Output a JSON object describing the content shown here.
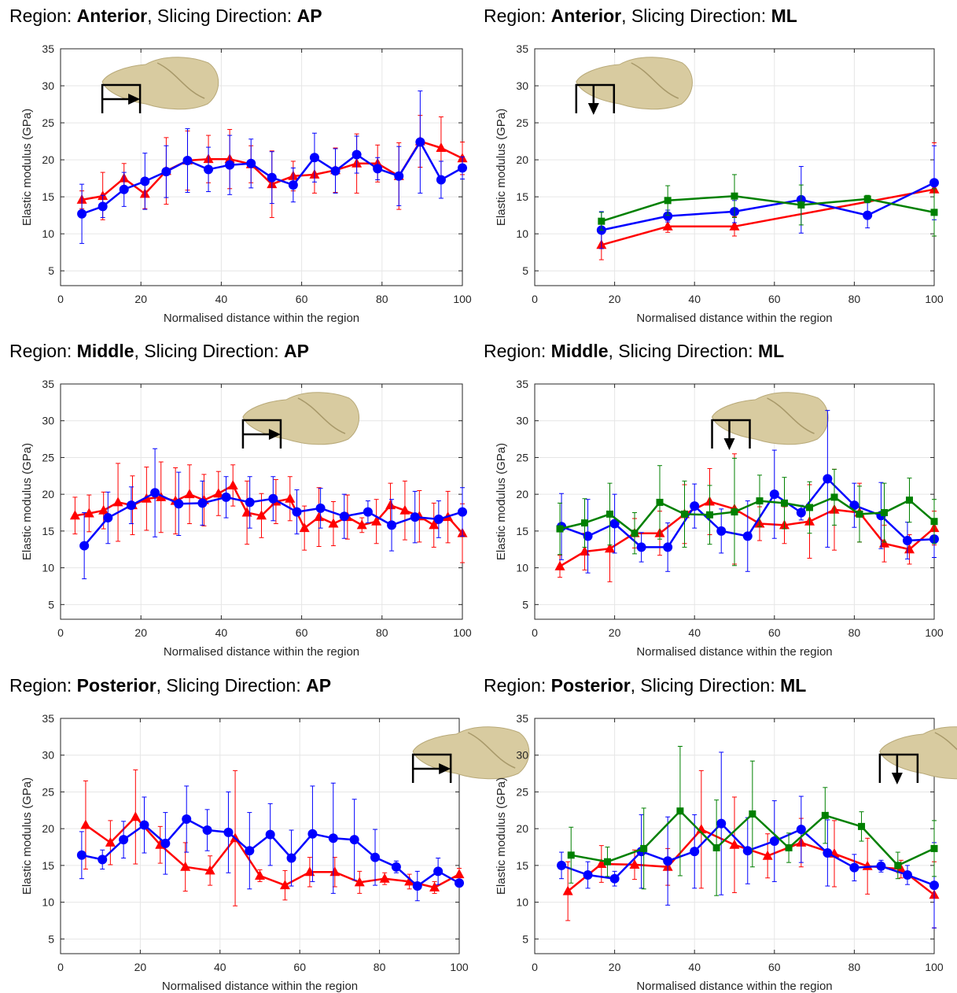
{
  "chart_data": [
    {
      "type": "line",
      "title_parts": [
        "Region: ",
        "Anterior",
        ", Slicing Direction: ",
        "AP"
      ],
      "xlabel": "Normalised distance within the region",
      "ylabel": "Elastic modulus (GPa)",
      "xlim": [
        0,
        100
      ],
      "ylim": [
        3,
        35
      ],
      "xticks": [
        0,
        20,
        40,
        60,
        80,
        100
      ],
      "yticks": [
        5,
        10,
        15,
        20,
        25,
        30,
        35
      ],
      "grid": true,
      "schematic": {
        "x": 10,
        "direction": "right"
      },
      "series": [
        {
          "color": "#ff0000",
          "marker": "triangle",
          "x": [
            5.3,
            10.5,
            15.8,
            21,
            26.3,
            31.6,
            36.8,
            42.1,
            47.4,
            52.6,
            57.9,
            63.2,
            68.4,
            73.7,
            78.9,
            84.2,
            89.5,
            94.7,
            100
          ],
          "y": [
            14.6,
            15.1,
            17.5,
            15.4,
            18.5,
            19.9,
            20.1,
            20.1,
            19.4,
            16.7,
            17.8,
            18.0,
            18.6,
            19.5,
            19.5,
            17.8,
            22.5,
            21.6,
            20.2
          ],
          "err": [
            1.2,
            3.2,
            2,
            2,
            4.5,
            4,
            3.2,
            4,
            2.5,
            4.5,
            2,
            2.5,
            3,
            4,
            2.5,
            4.5,
            3.5,
            4.2,
            2.2
          ]
        },
        {
          "color": "#0000ff",
          "marker": "circle",
          "x": [
            5.3,
            10.5,
            15.8,
            21,
            26.3,
            31.6,
            36.8,
            42.1,
            47.4,
            52.6,
            57.9,
            63.2,
            68.4,
            73.7,
            78.9,
            84.2,
            89.5,
            94.7,
            100
          ],
          "y": [
            12.7,
            13.7,
            16.0,
            17.1,
            18.4,
            19.9,
            18.7,
            19.3,
            19.5,
            17.6,
            16.6,
            20.3,
            18.5,
            20.7,
            18.8,
            17.8,
            22.4,
            17.3,
            18.9
          ],
          "err": [
            4,
            1.5,
            2.3,
            3.8,
            3.5,
            4.3,
            3,
            4,
            3.3,
            3.5,
            2.3,
            3.3,
            3,
            2.5,
            1.5,
            4,
            6.9,
            2.5,
            1.5
          ]
        }
      ]
    },
    {
      "type": "line",
      "title_parts": [
        "Region: ",
        "Anterior",
        ", Slicing Direction: ",
        "ML"
      ],
      "xlabel": "Normalised distance within the region",
      "ylabel": "Elastic modulus (GPa)",
      "xlim": [
        0,
        100
      ],
      "ylim": [
        3,
        35
      ],
      "xticks": [
        0,
        20,
        40,
        60,
        80,
        100
      ],
      "yticks": [
        5,
        10,
        15,
        20,
        25,
        30,
        35
      ],
      "grid": true,
      "schematic": {
        "x": 10,
        "direction": "down"
      },
      "series": [
        {
          "color": "#ff0000",
          "marker": "triangle",
          "x": [
            16.7,
            33.3,
            50,
            100
          ],
          "y": [
            8.5,
            11.0,
            11.0,
            16.0
          ],
          "err": [
            2,
            0.8,
            1.3,
            6.3
          ]
        },
        {
          "color": "#0000ff",
          "marker": "circle",
          "x": [
            16.7,
            33.3,
            50,
            66.7,
            83.3,
            100
          ],
          "y": [
            10.5,
            12.4,
            13.0,
            14.6,
            12.5,
            16.9
          ],
          "err": [
            2.5,
            0.8,
            1.5,
            4.5,
            1.7,
            5
          ]
        },
        {
          "color": "#008000",
          "marker": "square",
          "x": [
            16.7,
            33.3,
            50,
            66.7,
            83.3,
            100
          ],
          "y": [
            11.7,
            14.5,
            15.1,
            13.9,
            14.7,
            12.9
          ],
          "err": [
            1.2,
            2,
            2.9,
            2.7,
            0.5,
            3.2
          ]
        }
      ]
    },
    {
      "type": "line",
      "title_parts": [
        "Region: ",
        "Middle",
        ", Slicing Direction: ",
        "AP"
      ],
      "xlabel": "Normalised distance within the region",
      "ylabel": "Elastic modulus (GPa)",
      "xlim": [
        0,
        100
      ],
      "ylim": [
        3,
        35
      ],
      "xticks": [
        0,
        20,
        40,
        60,
        80,
        100
      ],
      "yticks": [
        5,
        10,
        15,
        20,
        25,
        30,
        35
      ],
      "grid": true,
      "schematic": {
        "x": 45,
        "direction": "right"
      },
      "series": [
        {
          "color": "#ff0000",
          "marker": "triangle",
          "x": [
            3.6,
            7.1,
            10.7,
            14.3,
            17.9,
            21.4,
            25,
            28.6,
            32.1,
            35.7,
            39.3,
            42.9,
            46.4,
            50,
            53.6,
            57.1,
            60.7,
            64.3,
            67.9,
            71.4,
            75,
            78.6,
            82.1,
            85.7,
            89.3,
            92.9,
            96.4,
            100
          ],
          "y": [
            17.1,
            17.4,
            17.8,
            18.9,
            18.5,
            19.4,
            19.6,
            19.1,
            20.0,
            19.2,
            20.1,
            21.2,
            17.5,
            17.1,
            19.0,
            19.4,
            15.4,
            16.9,
            16.0,
            16.9,
            15.8,
            16.3,
            18.5,
            17.8,
            17.0,
            15.8,
            16.9,
            14.7
          ],
          "err": [
            2.5,
            2.5,
            2.5,
            5.3,
            4,
            4.3,
            4.8,
            4.5,
            4,
            3.5,
            3,
            2.8,
            4.3,
            3,
            3,
            3,
            3,
            4,
            3,
            3,
            1,
            3,
            3,
            4,
            3.5,
            3,
            3.5,
            4
          ]
        },
        {
          "color": "#0000ff",
          "marker": "circle",
          "x": [
            5.9,
            11.8,
            17.6,
            23.5,
            29.4,
            35.3,
            41.2,
            47.1,
            52.9,
            58.8,
            64.7,
            70.6,
            76.5,
            82.4,
            88.2,
            94.1,
            100
          ],
          "y": [
            13.0,
            16.8,
            18.5,
            20.2,
            18.7,
            18.8,
            19.6,
            18.9,
            19.4,
            17.6,
            18.1,
            17.0,
            17.6,
            15.8,
            16.9,
            16.6,
            17.6
          ],
          "err": [
            4.5,
            3.5,
            2.5,
            6,
            4.3,
            3,
            2.8,
            3.5,
            3,
            3,
            2.7,
            3,
            1.5,
            3.5,
            3.5,
            2.5,
            3.3
          ]
        }
      ]
    },
    {
      "type": "line",
      "title_parts": [
        "Region: ",
        "Middle",
        ", Slicing Direction: ",
        "ML"
      ],
      "xlabel": "Normalised distance within the region",
      "ylabel": "Elastic modulus (GPa)",
      "xlim": [
        0,
        100
      ],
      "ylim": [
        3,
        35
      ],
      "xticks": [
        0,
        20,
        40,
        60,
        80,
        100
      ],
      "yticks": [
        5,
        10,
        15,
        20,
        25,
        30,
        35
      ],
      "grid": true,
      "schematic": {
        "x": 44,
        "direction": "down"
      },
      "series": [
        {
          "color": "#ff0000",
          "marker": "triangle",
          "x": [
            6.3,
            12.5,
            18.8,
            25,
            31.3,
            37.5,
            43.8,
            50,
            56.3,
            62.5,
            68.8,
            75,
            81.3,
            87.5,
            93.8,
            100
          ],
          "y": [
            10.2,
            12.2,
            12.6,
            14.7,
            14.7,
            17.3,
            19.0,
            18.0,
            16.0,
            15.8,
            16.3,
            17.9,
            17.5,
            13.3,
            12.5,
            15.4
          ],
          "err": [
            1.5,
            2.5,
            4.5,
            2,
            3,
            4,
            4.5,
            7.5,
            2.3,
            2.5,
            5,
            5.5,
            4,
            2.5,
            2,
            2.3
          ]
        },
        {
          "color": "#0000ff",
          "marker": "circle",
          "x": [
            6.7,
            13.3,
            20,
            26.7,
            33.3,
            40,
            46.7,
            53.3,
            60,
            66.7,
            73.3,
            80,
            86.7,
            93.3,
            100
          ],
          "y": [
            15.6,
            14.3,
            16.0,
            12.8,
            12.8,
            18.4,
            15.0,
            14.3,
            20.0,
            17.5,
            22.1,
            18.5,
            17.1,
            13.7,
            13.9
          ],
          "err": [
            4.5,
            5,
            4,
            2,
            3.3,
            3,
            3,
            4.8,
            6,
            1,
            9.3,
            3,
            4.5,
            2.5,
            2.5
          ]
        },
        {
          "color": "#008000",
          "marker": "square",
          "x": [
            6.3,
            12.5,
            18.8,
            25,
            31.3,
            37.5,
            43.8,
            50,
            56.3,
            62.5,
            68.8,
            75,
            81.3,
            87.5,
            93.8,
            100
          ],
          "y": [
            15.3,
            16.1,
            17.3,
            14.7,
            18.9,
            17.3,
            17.2,
            17.6,
            19.1,
            18.8,
            18.2,
            19.6,
            17.3,
            17.5,
            19.2,
            16.3
          ],
          "err": [
            3.5,
            3.3,
            4.2,
            2.8,
            5,
            4.5,
            4,
            7.3,
            3.5,
            3.5,
            3.5,
            3.8,
            3.8,
            4,
            3,
            3
          ]
        }
      ]
    },
    {
      "type": "line",
      "title_parts": [
        "Region: ",
        "Posterior",
        ", Slicing Direction: ",
        "AP"
      ],
      "xlabel": "Normalised distance within the region",
      "ylabel": "Elastic modulus (GPa)",
      "xlim": [
        0,
        100
      ],
      "ylim": [
        3,
        35
      ],
      "xticks": [
        0,
        20,
        40,
        60,
        80,
        100
      ],
      "yticks": [
        5,
        10,
        15,
        20,
        25,
        30,
        35
      ],
      "grid": true,
      "schematic": {
        "x": 88,
        "direction": "right"
      },
      "series": [
        {
          "color": "#ff0000",
          "marker": "triangle",
          "x": [
            6.3,
            12.5,
            18.8,
            25,
            31.3,
            37.5,
            43.8,
            50,
            56.3,
            62.5,
            68.8,
            75,
            81.3,
            87.5,
            93.8,
            100
          ],
          "y": [
            20.5,
            18.1,
            21.6,
            17.8,
            14.8,
            14.3,
            18.7,
            13.6,
            12.3,
            14.1,
            14.1,
            12.7,
            13.2,
            12.8,
            12.0,
            13.8
          ],
          "err": [
            6,
            3,
            6.4,
            2.5,
            3.3,
            2,
            9.2,
            0.8,
            2,
            2,
            2,
            1.5,
            0.8,
            1,
            0.8,
            0.8
          ]
        },
        {
          "color": "#0000ff",
          "marker": "circle",
          "x": [
            5.3,
            10.5,
            15.8,
            21,
            26.3,
            31.6,
            36.8,
            42.1,
            47.4,
            52.6,
            57.9,
            63.2,
            68.4,
            73.7,
            78.9,
            84.2,
            89.5,
            94.7,
            100
          ],
          "y": [
            16.4,
            15.8,
            18.5,
            20.5,
            18.0,
            21.3,
            19.8,
            19.5,
            17.0,
            19.2,
            16.0,
            19.3,
            18.7,
            18.5,
            16.1,
            14.8,
            12.2,
            14.2,
            12.6
          ],
          "err": [
            3.2,
            1.3,
            2.5,
            3.8,
            4.2,
            4.5,
            2.8,
            5.5,
            5.2,
            4.2,
            3.8,
            6.5,
            7.5,
            5.5,
            3.8,
            0.8,
            2,
            1.8,
            0.5
          ]
        }
      ]
    },
    {
      "type": "line",
      "title_parts": [
        "Region: ",
        "Posterior",
        ", Slicing Direction: ",
        "ML"
      ],
      "xlabel": "Normalised distance within the region",
      "ylabel": "Elastic modulus (GPa)",
      "xlim": [
        0,
        100
      ],
      "ylim": [
        3,
        35
      ],
      "xticks": [
        0,
        20,
        40,
        60,
        80,
        100
      ],
      "yticks": [
        5,
        10,
        15,
        20,
        25,
        30,
        35
      ],
      "grid": true,
      "schematic": {
        "x": 86,
        "direction": "down"
      },
      "series": [
        {
          "color": "#ff0000",
          "marker": "triangle",
          "x": [
            8.3,
            16.7,
            25,
            33.3,
            41.7,
            50,
            58.3,
            66.7,
            75,
            83.3,
            91.7,
            100
          ],
          "y": [
            11.5,
            15.2,
            15.1,
            14.8,
            19.9,
            17.8,
            16.3,
            18.1,
            16.6,
            14.9,
            14.5,
            11.0
          ],
          "err": [
            4,
            2.5,
            2,
            2.5,
            8,
            6.5,
            3,
            3.3,
            4.5,
            3.8,
            1.2,
            4.5
          ]
        },
        {
          "color": "#0000ff",
          "marker": "circle",
          "x": [
            6.7,
            13.3,
            20,
            26.7,
            33.3,
            40,
            46.7,
            53.3,
            60,
            66.7,
            73.3,
            80,
            86.7,
            93.3,
            100
          ],
          "y": [
            15.0,
            13.7,
            13.2,
            16.9,
            15.6,
            16.9,
            20.7,
            17.0,
            18.3,
            19.9,
            16.7,
            14.7,
            14.9,
            13.7,
            12.3
          ],
          "err": [
            1.8,
            1.8,
            1,
            5,
            6,
            5,
            9.7,
            4.5,
            5.5,
            4.5,
            4.5,
            1.8,
            0.8,
            1.3,
            5.8
          ]
        },
        {
          "color": "#008000",
          "marker": "square",
          "x": [
            9.1,
            18.2,
            27.3,
            36.4,
            45.5,
            54.5,
            63.6,
            72.7,
            81.8,
            90.9,
            100
          ],
          "y": [
            16.4,
            15.5,
            17.3,
            22.4,
            17.4,
            22.0,
            17.4,
            21.8,
            20.3,
            15.0,
            17.3
          ],
          "err": [
            3.8,
            2,
            5.5,
            8.8,
            6.5,
            7.2,
            2,
            3.8,
            2,
            1.8,
            3.8
          ]
        }
      ]
    }
  ]
}
